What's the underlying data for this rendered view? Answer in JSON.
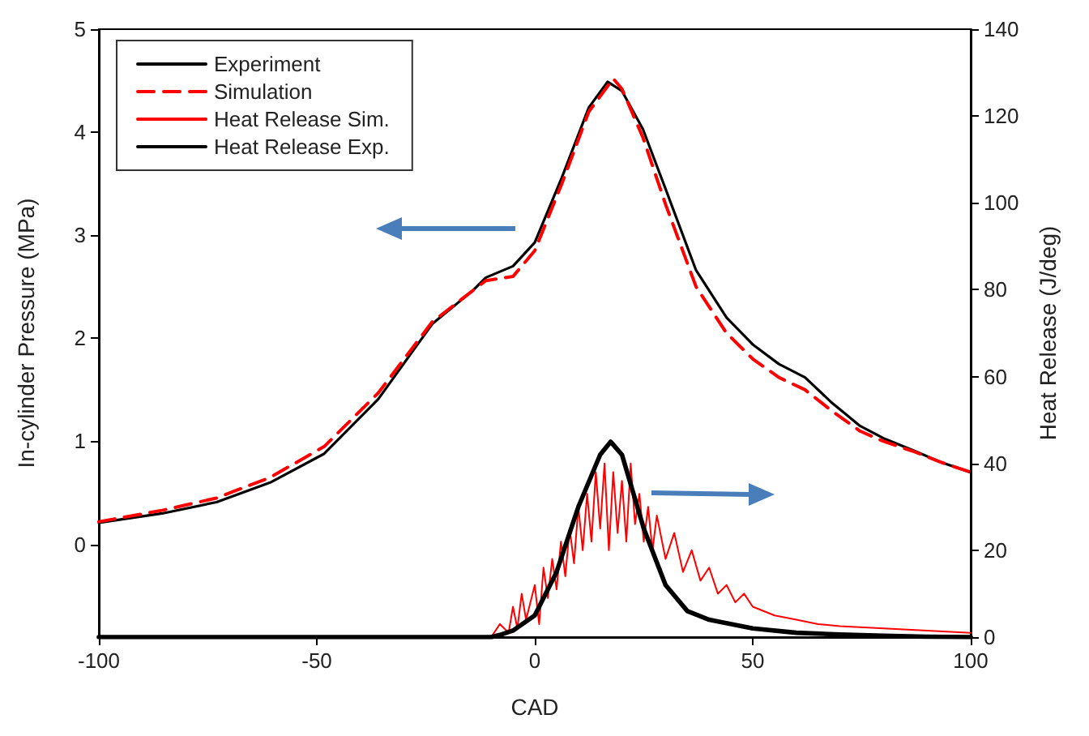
{
  "chart_data": {
    "type": "line",
    "xlabel": "CAD",
    "ylabel": "In-cylinder Pressure (MPa)",
    "y2label": "Heat Release (J/deg)",
    "xlim": [
      -100,
      100
    ],
    "xticks": [
      -100,
      -50,
      0,
      50,
      100
    ],
    "ylim": [
      -0.9,
      5
    ],
    "yticks": [
      0,
      1,
      2,
      3,
      4,
      5
    ],
    "y2lim": [
      0,
      140
    ],
    "y2ticks": [
      0,
      20,
      40,
      60,
      80,
      100,
      120,
      140
    ],
    "grid": false,
    "legend": "top left",
    "marker": "none",
    "series": [
      {
        "name": "Experiment",
        "color": "#000000",
        "line_style": "solid",
        "x": [
          -100,
          -85.5,
          -73,
          -60.7,
          -48.3,
          -35.9,
          -23.5,
          -14.3,
          -11.2,
          -5,
          0,
          6.2,
          12.4,
          16.7,
          20,
          24.8,
          30,
          37,
          44,
          50,
          56,
          62,
          68,
          74.6,
          80,
          87,
          93,
          100
        ],
        "values": [
          0.21,
          0.3,
          0.41,
          0.6,
          0.88,
          1.41,
          2.14,
          2.46,
          2.59,
          2.7,
          2.93,
          3.56,
          4.24,
          4.49,
          4.4,
          4.03,
          3.45,
          2.66,
          2.2,
          1.94,
          1.75,
          1.62,
          1.38,
          1.15,
          1.03,
          0.91,
          0.8,
          0.7
        ]
      },
      {
        "name": "Simulation",
        "color": "#ff0000",
        "line_style": "dashed",
        "x": [
          -100,
          -85.5,
          -73,
          -60.7,
          -48.3,
          -35.9,
          -23.5,
          -14.3,
          -11.2,
          -5,
          0,
          6.2,
          12.4,
          18,
          20,
          24.8,
          30,
          37,
          44,
          50,
          56,
          62,
          68,
          74.6,
          80,
          87,
          93,
          100
        ],
        "values": [
          0.22,
          0.33,
          0.45,
          0.65,
          0.95,
          1.47,
          2.16,
          2.46,
          2.56,
          2.6,
          2.85,
          3.5,
          4.2,
          4.52,
          4.42,
          3.95,
          3.3,
          2.5,
          2.05,
          1.8,
          1.62,
          1.5,
          1.3,
          1.1,
          1.0,
          0.9,
          0.8,
          0.7
        ]
      },
      {
        "name": "Heat Release Sim.",
        "color": "#ff0000",
        "line_style": "solid",
        "axis": "y2",
        "x": [
          -100,
          -10,
          -8,
          -6,
          -5,
          -4,
          -3,
          -2,
          0,
          1,
          2,
          3,
          4,
          5,
          6,
          7,
          8,
          9,
          10,
          11,
          12,
          13,
          14,
          15,
          16,
          17,
          18,
          19,
          20,
          21,
          22,
          23,
          24,
          25,
          26,
          27,
          28,
          30,
          32,
          34,
          36,
          38,
          40,
          42,
          44,
          46,
          48,
          50,
          55,
          60,
          65,
          70,
          80,
          90,
          100
        ],
        "values": [
          0,
          0,
          3,
          1,
          7,
          2,
          10,
          4,
          12,
          3,
          16,
          9,
          18,
          11,
          22,
          14,
          25,
          17,
          30,
          20,
          33,
          22,
          38,
          25,
          40,
          20,
          38,
          24,
          36,
          22,
          40,
          26,
          33,
          22,
          30,
          20,
          28,
          18,
          24,
          15,
          20,
          13,
          16,
          10,
          12,
          8,
          10,
          7,
          5,
          4,
          3,
          2.5,
          2,
          1.5,
          1
        ]
      },
      {
        "name": "Heat Release Exp.",
        "color": "#000000",
        "line_style": "solid",
        "axis": "y2",
        "x": [
          -100,
          -10,
          -8,
          -5,
          0,
          5,
          10,
          15,
          17.4,
          20,
          25,
          30,
          35,
          40,
          50,
          60,
          70,
          80,
          90,
          100
        ],
        "values": [
          0,
          0,
          0.5,
          1.5,
          5,
          15,
          30,
          42,
          45,
          42,
          25,
          12,
          6,
          4,
          2,
          1,
          0.6,
          0.3,
          0.1,
          0
        ]
      }
    ]
  }
}
